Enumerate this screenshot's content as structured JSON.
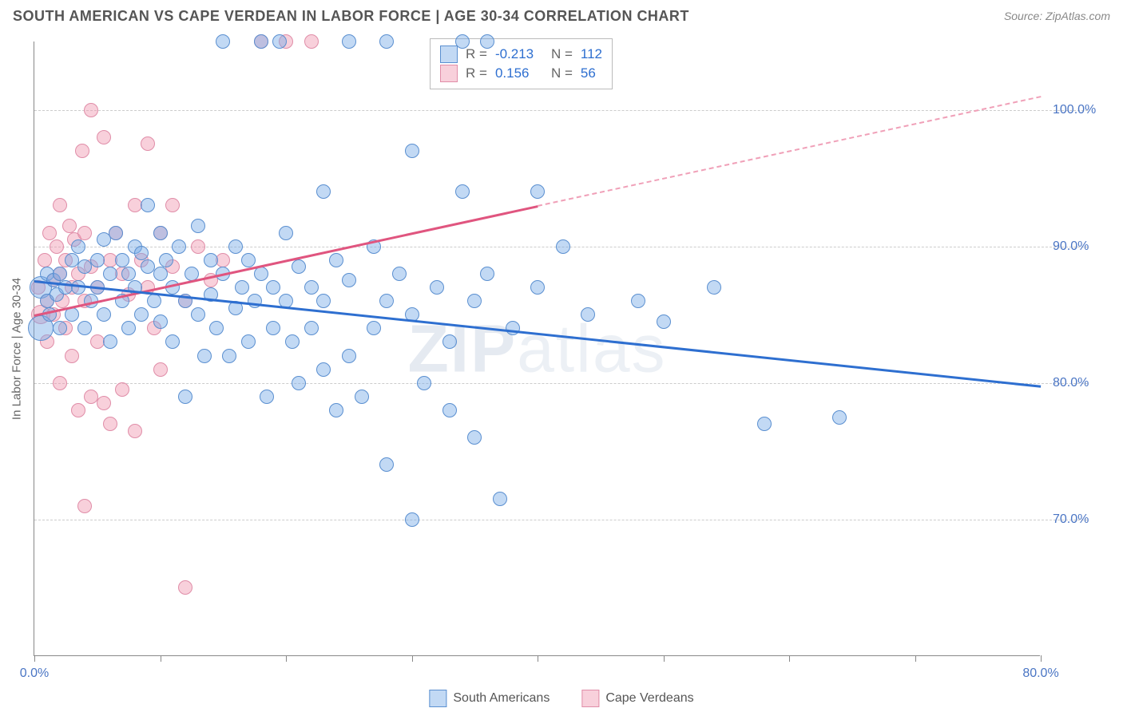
{
  "title": "SOUTH AMERICAN VS CAPE VERDEAN IN LABOR FORCE | AGE 30-34 CORRELATION CHART",
  "source": "Source: ZipAtlas.com",
  "ylabel": "In Labor Force | Age 30-34",
  "watermark_bold": "ZIP",
  "watermark_thin": "atlas",
  "colors": {
    "series_a_fill": "rgba(120,170,230,0.45)",
    "series_a_stroke": "#5a8fd0",
    "series_b_fill": "rgba(240,150,175,0.45)",
    "series_b_stroke": "#e08da8",
    "trend_a": "#2e6fd0",
    "trend_b": "#e0557f",
    "trend_b_dash": "#f0a0b8",
    "ytick_text": "#4a75c4",
    "xtick_left": "#4a75c4",
    "xtick_right": "#4a75c4",
    "stat_value": "#2e6fd0",
    "text_muted": "#666666"
  },
  "axes": {
    "x_min": 0,
    "x_max": 80,
    "y_min": 60,
    "y_max": 105,
    "y_ticks": [
      70,
      80,
      90,
      100
    ],
    "y_tick_labels": [
      "70.0%",
      "80.0%",
      "90.0%",
      "100.0%"
    ],
    "x_ticks": [
      0,
      10,
      20,
      30,
      40,
      50,
      60,
      70,
      80
    ],
    "x_left_label": "0.0%",
    "x_right_label": "80.0%"
  },
  "stats_legend": {
    "rows": [
      {
        "swatch": "a",
        "r_label": "R =",
        "r_value": "-0.213",
        "n_label": "N =",
        "n_value": "112"
      },
      {
        "swatch": "b",
        "r_label": "R =",
        "r_value": "0.156",
        "n_label": "N =",
        "n_value": "56"
      }
    ]
  },
  "bottom_legend": [
    {
      "swatch": "a",
      "label": "South Americans"
    },
    {
      "swatch": "b",
      "label": "Cape Verdeans"
    }
  ],
  "trend_lines": {
    "a": {
      "x1": 0,
      "y1": 87.5,
      "x2": 80,
      "y2": 79.8
    },
    "b_solid": {
      "x1": 0,
      "y1": 85.0,
      "x2": 40,
      "y2": 93.0
    },
    "b_dash": {
      "x1": 40,
      "y1": 93.0,
      "x2": 80,
      "y2": 101.0
    }
  },
  "marker_radius_default": 9,
  "series_a": [
    {
      "x": 0.5,
      "y": 87,
      "r": 14
    },
    {
      "x": 0.5,
      "y": 84,
      "r": 16
    },
    {
      "x": 1,
      "y": 88
    },
    {
      "x": 1,
      "y": 86
    },
    {
      "x": 1.2,
      "y": 85
    },
    {
      "x": 1.5,
      "y": 87.5
    },
    {
      "x": 1.8,
      "y": 86.5
    },
    {
      "x": 2,
      "y": 88
    },
    {
      "x": 2,
      "y": 84
    },
    {
      "x": 2.5,
      "y": 87
    },
    {
      "x": 3,
      "y": 89
    },
    {
      "x": 3,
      "y": 85
    },
    {
      "x": 3.5,
      "y": 90
    },
    {
      "x": 3.5,
      "y": 87
    },
    {
      "x": 4,
      "y": 88.5
    },
    {
      "x": 4,
      "y": 84
    },
    {
      "x": 4.5,
      "y": 86
    },
    {
      "x": 5,
      "y": 89
    },
    {
      "x": 5,
      "y": 87
    },
    {
      "x": 5.5,
      "y": 90.5
    },
    {
      "x": 5.5,
      "y": 85
    },
    {
      "x": 6,
      "y": 88
    },
    {
      "x": 6,
      "y": 83
    },
    {
      "x": 6.5,
      "y": 91
    },
    {
      "x": 7,
      "y": 89
    },
    {
      "x": 7,
      "y": 86
    },
    {
      "x": 7.5,
      "y": 88
    },
    {
      "x": 7.5,
      "y": 84
    },
    {
      "x": 8,
      "y": 90
    },
    {
      "x": 8,
      "y": 87
    },
    {
      "x": 8.5,
      "y": 89.5
    },
    {
      "x": 8.5,
      "y": 85
    },
    {
      "x": 9,
      "y": 93
    },
    {
      "x": 9,
      "y": 88.5
    },
    {
      "x": 9.5,
      "y": 86
    },
    {
      "x": 10,
      "y": 91
    },
    {
      "x": 10,
      "y": 88
    },
    {
      "x": 10,
      "y": 84.5
    },
    {
      "x": 10.5,
      "y": 89
    },
    {
      "x": 11,
      "y": 87
    },
    {
      "x": 11,
      "y": 83
    },
    {
      "x": 11.5,
      "y": 90
    },
    {
      "x": 12,
      "y": 86
    },
    {
      "x": 12,
      "y": 79
    },
    {
      "x": 12.5,
      "y": 88
    },
    {
      "x": 13,
      "y": 91.5
    },
    {
      "x": 13,
      "y": 85
    },
    {
      "x": 13.5,
      "y": 82
    },
    {
      "x": 14,
      "y": 89
    },
    {
      "x": 14,
      "y": 86.5
    },
    {
      "x": 14.5,
      "y": 84
    },
    {
      "x": 15,
      "y": 105
    },
    {
      "x": 15,
      "y": 88
    },
    {
      "x": 15.5,
      "y": 82
    },
    {
      "x": 16,
      "y": 90
    },
    {
      "x": 16,
      "y": 85.5
    },
    {
      "x": 16.5,
      "y": 87
    },
    {
      "x": 17,
      "y": 89
    },
    {
      "x": 17,
      "y": 83
    },
    {
      "x": 17.5,
      "y": 86
    },
    {
      "x": 18,
      "y": 105
    },
    {
      "x": 18,
      "y": 88
    },
    {
      "x": 18.5,
      "y": 79
    },
    {
      "x": 19,
      "y": 87
    },
    {
      "x": 19,
      "y": 84
    },
    {
      "x": 19.5,
      "y": 105
    },
    {
      "x": 20,
      "y": 91
    },
    {
      "x": 20,
      "y": 86
    },
    {
      "x": 20.5,
      "y": 83
    },
    {
      "x": 21,
      "y": 88.5
    },
    {
      "x": 21,
      "y": 80
    },
    {
      "x": 22,
      "y": 87
    },
    {
      "x": 22,
      "y": 84
    },
    {
      "x": 23,
      "y": 94
    },
    {
      "x": 23,
      "y": 86
    },
    {
      "x": 23,
      "y": 81
    },
    {
      "x": 24,
      "y": 89
    },
    {
      "x": 24,
      "y": 78
    },
    {
      "x": 25,
      "y": 105
    },
    {
      "x": 25,
      "y": 87.5
    },
    {
      "x": 25,
      "y": 82
    },
    {
      "x": 26,
      "y": 79
    },
    {
      "x": 27,
      "y": 90
    },
    {
      "x": 27,
      "y": 84
    },
    {
      "x": 28,
      "y": 105
    },
    {
      "x": 28,
      "y": 86
    },
    {
      "x": 28,
      "y": 74
    },
    {
      "x": 29,
      "y": 88
    },
    {
      "x": 30,
      "y": 97
    },
    {
      "x": 30,
      "y": 85
    },
    {
      "x": 30,
      "y": 70
    },
    {
      "x": 31,
      "y": 80
    },
    {
      "x": 32,
      "y": 87
    },
    {
      "x": 33,
      "y": 83
    },
    {
      "x": 33,
      "y": 78
    },
    {
      "x": 34,
      "y": 94
    },
    {
      "x": 34,
      "y": 105
    },
    {
      "x": 35,
      "y": 86
    },
    {
      "x": 35,
      "y": 76
    },
    {
      "x": 36,
      "y": 88
    },
    {
      "x": 37,
      "y": 71.5
    },
    {
      "x": 38,
      "y": 84
    },
    {
      "x": 40,
      "y": 94
    },
    {
      "x": 40,
      "y": 87
    },
    {
      "x": 42,
      "y": 90
    },
    {
      "x": 44,
      "y": 85
    },
    {
      "x": 48,
      "y": 86
    },
    {
      "x": 50,
      "y": 84.5
    },
    {
      "x": 54,
      "y": 87
    },
    {
      "x": 58,
      "y": 77
    },
    {
      "x": 64,
      "y": 77.5
    },
    {
      "x": 36,
      "y": 105
    }
  ],
  "series_b": [
    {
      "x": 0.3,
      "y": 87
    },
    {
      "x": 0.5,
      "y": 85,
      "r": 12
    },
    {
      "x": 0.8,
      "y": 89
    },
    {
      "x": 1,
      "y": 86
    },
    {
      "x": 1,
      "y": 83
    },
    {
      "x": 1.2,
      "y": 91
    },
    {
      "x": 1.5,
      "y": 87.5
    },
    {
      "x": 1.5,
      "y": 85
    },
    {
      "x": 1.8,
      "y": 90
    },
    {
      "x": 2,
      "y": 88
    },
    {
      "x": 2,
      "y": 93
    },
    {
      "x": 2,
      "y": 80
    },
    {
      "x": 2.2,
      "y": 86
    },
    {
      "x": 2.5,
      "y": 89
    },
    {
      "x": 2.5,
      "y": 84
    },
    {
      "x": 2.8,
      "y": 91.5
    },
    {
      "x": 3,
      "y": 87
    },
    {
      "x": 3,
      "y": 82
    },
    {
      "x": 3.2,
      "y": 90.5
    },
    {
      "x": 3.5,
      "y": 88
    },
    {
      "x": 3.5,
      "y": 78
    },
    {
      "x": 3.8,
      "y": 97
    },
    {
      "x": 4,
      "y": 86
    },
    {
      "x": 4,
      "y": 91
    },
    {
      "x": 4,
      "y": 71
    },
    {
      "x": 4.5,
      "y": 100
    },
    {
      "x": 4.5,
      "y": 88.5
    },
    {
      "x": 4.5,
      "y": 79
    },
    {
      "x": 5,
      "y": 87
    },
    {
      "x": 5,
      "y": 83
    },
    {
      "x": 5.5,
      "y": 98
    },
    {
      "x": 5.5,
      "y": 78.5
    },
    {
      "x": 6,
      "y": 89
    },
    {
      "x": 6,
      "y": 77
    },
    {
      "x": 6.5,
      "y": 91
    },
    {
      "x": 7,
      "y": 88
    },
    {
      "x": 7,
      "y": 79.5
    },
    {
      "x": 7.5,
      "y": 86.5
    },
    {
      "x": 8,
      "y": 93
    },
    {
      "x": 8,
      "y": 76.5
    },
    {
      "x": 8.5,
      "y": 89
    },
    {
      "x": 9,
      "y": 97.5
    },
    {
      "x": 9,
      "y": 87
    },
    {
      "x": 9.5,
      "y": 84
    },
    {
      "x": 10,
      "y": 91
    },
    {
      "x": 10,
      "y": 81
    },
    {
      "x": 11,
      "y": 88.5
    },
    {
      "x": 11,
      "y": 93
    },
    {
      "x": 12,
      "y": 86
    },
    {
      "x": 12,
      "y": 65
    },
    {
      "x": 13,
      "y": 90
    },
    {
      "x": 14,
      "y": 87.5
    },
    {
      "x": 15,
      "y": 89
    },
    {
      "x": 18,
      "y": 105
    },
    {
      "x": 20,
      "y": 105
    },
    {
      "x": 22,
      "y": 105
    }
  ]
}
